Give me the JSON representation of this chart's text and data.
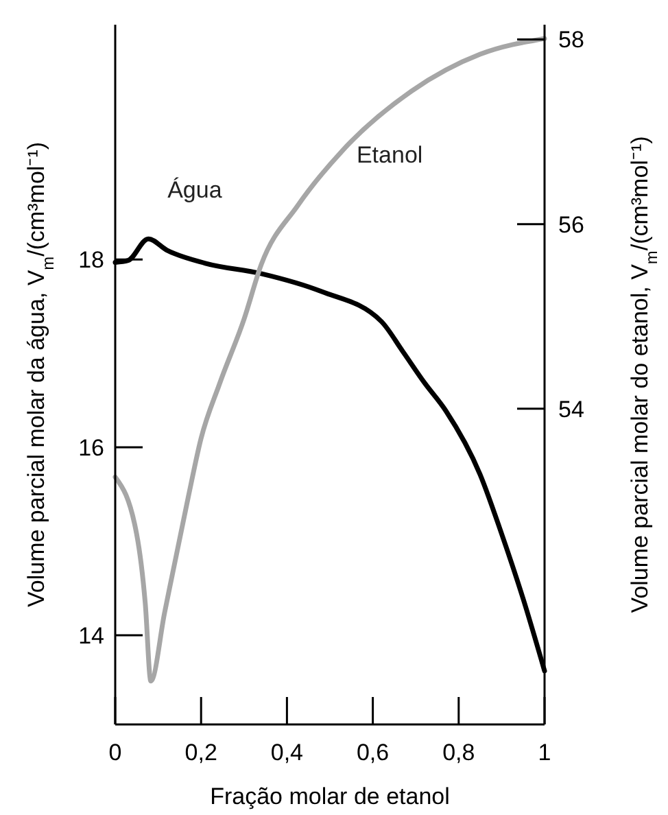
{
  "chart_data": {
    "type": "line",
    "xlabel": "Fração molar de etanol",
    "ylabel": "Volume parcial molar da água, V$_{m}$/(cm³mol⁻¹)",
    "y2label": "Volume parcial molar do etanol, V$_{m}$/(cm³mol⁻¹)",
    "xlim": [
      0,
      1
    ],
    "xticks": [
      0,
      {
        "value": 0.2,
        "label": "0,2"
      },
      {
        "value": 0.4,
        "label": "0,4"
      },
      {
        "value": 0.6,
        "label": "0,6"
      },
      {
        "value": 0.8,
        "label": "0,8"
      },
      1
    ],
    "ylim": [
      13.05,
      20.5
    ],
    "yticks": [
      14,
      16,
      18
    ],
    "y2lim": [
      50.58,
      58.16
    ],
    "y2ticks": [
      54,
      56,
      58
    ],
    "grid": false,
    "marker": "none",
    "line_style": "solid",
    "series": [
      {
        "name": "Água",
        "color": "#000000",
        "x": [
          0,
          0.03,
          0.077,
          0.12,
          0.21,
          0.34,
          0.48,
          0.62,
          0.67,
          0.72,
          0.77,
          0.85,
          0.9,
          0.95,
          1
        ],
        "values": [
          17.97,
          17.99,
          18.22,
          18.1,
          17.96,
          17.85,
          17.66,
          17.34,
          17.02,
          16.69,
          16.39,
          15.71,
          15.08,
          14.39,
          13.62
        ]
      },
      {
        "name": "Etanol",
        "color": "#a6a6a6",
        "axis": "y2",
        "x": [
          0,
          0.05,
          0.07,
          0.083,
          0.115,
          0.17,
          0.2,
          0.243,
          0.3,
          0.34,
          0.425,
          0.53,
          0.69,
          0.85,
          1
        ],
        "values": [
          53.26,
          52.64,
          51.89,
          51.05,
          51.79,
          53.04,
          53.68,
          54.27,
          54.97,
          55.56,
          56.2,
          56.8,
          57.44,
          57.84,
          58.01
        ]
      }
    ]
  }
}
